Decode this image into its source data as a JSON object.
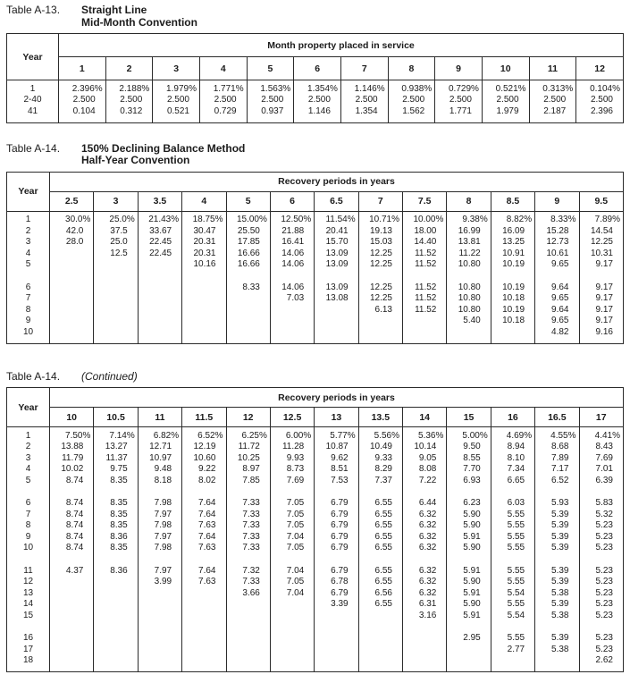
{
  "tables": [
    {
      "label": "Table A-13.",
      "title_lines": [
        "Straight Line",
        "Mid-Month Convention"
      ],
      "title_italic": false,
      "year_header": "Year",
      "span_header": "Month property placed in service",
      "columns": [
        "1",
        "2",
        "3",
        "4",
        "5",
        "6",
        "7",
        "8",
        "9",
        "10",
        "11",
        "12"
      ],
      "row_groups": [
        {
          "rows": [
            {
              "year": "1",
              "values": [
                "2.396%",
                "2.188%",
                "1.979%",
                "1.771%",
                "1.563%",
                "1.354%",
                "1.146%",
                "0.938%",
                "0.729%",
                "0.521%",
                "0.313%",
                "0.104%"
              ]
            },
            {
              "year": "2-40",
              "values": [
                "2.500",
                "2.500",
                "2.500",
                "2.500",
                "2.500",
                "2.500",
                "2.500",
                "2.500",
                "2.500",
                "2.500",
                "2.500",
                "2.500"
              ]
            },
            {
              "year": "41",
              "values": [
                "0.104",
                "0.312",
                "0.521",
                "0.729",
                "0.937",
                "1.146",
                "1.354",
                "1.562",
                "1.771",
                "1.979",
                "2.187",
                "2.396"
              ]
            }
          ]
        }
      ]
    },
    {
      "label": "Table A-14.",
      "title_lines": [
        "150% Declining Balance Method",
        "Half-Year Convention"
      ],
      "title_italic": false,
      "year_header": "Year",
      "span_header": "Recovery periods in years",
      "columns": [
        "2.5",
        "3",
        "3.5",
        "4",
        "5",
        "6",
        "6.5",
        "7",
        "7.5",
        "8",
        "8.5",
        "9",
        "9.5"
      ],
      "row_groups": [
        {
          "rows": [
            {
              "year": "1",
              "values": [
                "30.0%",
                "25.0%",
                "21.43%",
                "18.75%",
                "15.00%",
                "12.50%",
                "11.54%",
                "10.71%",
                "10.00%",
                "9.38%",
                "8.82%",
                "8.33%",
                "7.89%"
              ]
            },
            {
              "year": "2",
              "values": [
                "42.0",
                "37.5",
                "33.67",
                "30.47",
                "25.50",
                "21.88",
                "20.41",
                "19.13",
                "18.00",
                "16.99",
                "16.09",
                "15.28",
                "14.54"
              ]
            },
            {
              "year": "3",
              "values": [
                "28.0",
                "25.0",
                "22.45",
                "20.31",
                "17.85",
                "16.41",
                "15.70",
                "15.03",
                "14.40",
                "13.81",
                "13.25",
                "12.73",
                "12.25"
              ]
            },
            {
              "year": "4",
              "values": [
                "",
                "12.5",
                "22.45",
                "20.31",
                "16.66",
                "14.06",
                "13.09",
                "12.25",
                "11.52",
                "11.22",
                "10.91",
                "10.61",
                "10.31"
              ]
            },
            {
              "year": "5",
              "values": [
                "",
                "",
                "",
                "10.16",
                "16.66",
                "14.06",
                "13.09",
                "12.25",
                "11.52",
                "10.80",
                "10.19",
                "9.65",
                "9.17"
              ]
            }
          ]
        },
        {
          "rows": [
            {
              "year": "6",
              "values": [
                "",
                "",
                "",
                "",
                "8.33",
                "14.06",
                "13.09",
                "12.25",
                "11.52",
                "10.80",
                "10.19",
                "9.64",
                "9.17"
              ]
            },
            {
              "year": "7",
              "values": [
                "",
                "",
                "",
                "",
                "",
                "7.03",
                "13.08",
                "12.25",
                "11.52",
                "10.80",
                "10.18",
                "9.65",
                "9.17"
              ]
            },
            {
              "year": "8",
              "values": [
                "",
                "",
                "",
                "",
                "",
                "",
                "",
                "6.13",
                "11.52",
                "10.80",
                "10.19",
                "9.64",
                "9.17"
              ]
            },
            {
              "year": "9",
              "values": [
                "",
                "",
                "",
                "",
                "",
                "",
                "",
                "",
                "",
                "5.40",
                "10.18",
                "9.65",
                "9.17"
              ]
            },
            {
              "year": "10",
              "values": [
                "",
                "",
                "",
                "",
                "",
                "",
                "",
                "",
                "",
                "",
                "",
                "4.82",
                "9.16"
              ]
            }
          ]
        }
      ]
    },
    {
      "label": "Table A-14.",
      "title_lines": [
        "(Continued)"
      ],
      "title_italic": true,
      "year_header": "Year",
      "span_header": "Recovery periods in years",
      "columns": [
        "10",
        "10.5",
        "11",
        "11.5",
        "12",
        "12.5",
        "13",
        "13.5",
        "14",
        "15",
        "16",
        "16.5",
        "17"
      ],
      "row_groups": [
        {
          "rows": [
            {
              "year": "1",
              "values": [
                "7.50%",
                "7.14%",
                "6.82%",
                "6.52%",
                "6.25%",
                "6.00%",
                "5.77%",
                "5.56%",
                "5.36%",
                "5.00%",
                "4.69%",
                "4.55%",
                "4.41%"
              ]
            },
            {
              "year": "2",
              "values": [
                "13.88",
                "13.27",
                "12.71",
                "12.19",
                "11.72",
                "11.28",
                "10.87",
                "10.49",
                "10.14",
                "9.50",
                "8.94",
                "8.68",
                "8.43"
              ]
            },
            {
              "year": "3",
              "values": [
                "11.79",
                "11.37",
                "10.97",
                "10.60",
                "10.25",
                "9.93",
                "9.62",
                "9.33",
                "9.05",
                "8.55",
                "8.10",
                "7.89",
                "7.69"
              ]
            },
            {
              "year": "4",
              "values": [
                "10.02",
                "9.75",
                "9.48",
                "9.22",
                "8.97",
                "8.73",
                "8.51",
                "8.29",
                "8.08",
                "7.70",
                "7.34",
                "7.17",
                "7.01"
              ]
            },
            {
              "year": "5",
              "values": [
                "8.74",
                "8.35",
                "8.18",
                "8.02",
                "7.85",
                "7.69",
                "7.53",
                "7.37",
                "7.22",
                "6.93",
                "6.65",
                "6.52",
                "6.39"
              ]
            }
          ]
        },
        {
          "rows": [
            {
              "year": "6",
              "values": [
                "8.74",
                "8.35",
                "7.98",
                "7.64",
                "7.33",
                "7.05",
                "6.79",
                "6.55",
                "6.44",
                "6.23",
                "6.03",
                "5.93",
                "5.83"
              ]
            },
            {
              "year": "7",
              "values": [
                "8.74",
                "8.35",
                "7.97",
                "7.64",
                "7.33",
                "7.05",
                "6.79",
                "6.55",
                "6.32",
                "5.90",
                "5.55",
                "5.39",
                "5.32"
              ]
            },
            {
              "year": "8",
              "values": [
                "8.74",
                "8.35",
                "7.98",
                "7.63",
                "7.33",
                "7.05",
                "6.79",
                "6.55",
                "6.32",
                "5.90",
                "5.55",
                "5.39",
                "5.23"
              ]
            },
            {
              "year": "9",
              "values": [
                "8.74",
                "8.36",
                "7.97",
                "7.64",
                "7.33",
                "7.04",
                "6.79",
                "6.55",
                "6.32",
                "5.91",
                "5.55",
                "5.39",
                "5.23"
              ]
            },
            {
              "year": "10",
              "values": [
                "8.74",
                "8.35",
                "7.98",
                "7.63",
                "7.33",
                "7.05",
                "6.79",
                "6.55",
                "6.32",
                "5.90",
                "5.55",
                "5.39",
                "5.23"
              ]
            }
          ]
        },
        {
          "rows": [
            {
              "year": "11",
              "values": [
                "4.37",
                "8.36",
                "7.97",
                "7.64",
                "7.32",
                "7.04",
                "6.79",
                "6.55",
                "6.32",
                "5.91",
                "5.55",
                "5.39",
                "5.23"
              ]
            },
            {
              "year": "12",
              "values": [
                "",
                "",
                "3.99",
                "7.63",
                "7.33",
                "7.05",
                "6.78",
                "6.55",
                "6.32",
                "5.90",
                "5.55",
                "5.39",
                "5.23"
              ]
            },
            {
              "year": "13",
              "values": [
                "",
                "",
                "",
                "",
                "3.66",
                "7.04",
                "6.79",
                "6.56",
                "6.32",
                "5.91",
                "5.54",
                "5.38",
                "5.23"
              ]
            },
            {
              "year": "14",
              "values": [
                "",
                "",
                "",
                "",
                "",
                "",
                "3.39",
                "6.55",
                "6.31",
                "5.90",
                "5.55",
                "5.39",
                "5.23"
              ]
            },
            {
              "year": "15",
              "values": [
                "",
                "",
                "",
                "",
                "",
                "",
                "",
                "",
                "3.16",
                "5.91",
                "5.54",
                "5.38",
                "5.23"
              ]
            }
          ]
        },
        {
          "rows": [
            {
              "year": "16",
              "values": [
                "",
                "",
                "",
                "",
                "",
                "",
                "",
                "",
                "",
                "2.95",
                "5.55",
                "5.39",
                "5.23"
              ]
            },
            {
              "year": "17",
              "values": [
                "",
                "",
                "",
                "",
                "",
                "",
                "",
                "",
                "",
                "",
                "2.77",
                "5.38",
                "5.23"
              ]
            },
            {
              "year": "18",
              "values": [
                "",
                "",
                "",
                "",
                "",
                "",
                "",
                "",
                "",
                "",
                "",
                "",
                "2.62"
              ]
            }
          ]
        }
      ]
    }
  ]
}
